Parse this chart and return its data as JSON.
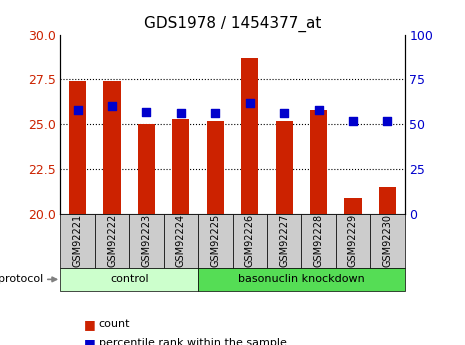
{
  "title": "GDS1978 / 1454377_at",
  "samples": [
    "GSM92221",
    "GSM92222",
    "GSM92223",
    "GSM92224",
    "GSM92225",
    "GSM92226",
    "GSM92227",
    "GSM92228",
    "GSM92229",
    "GSM92230"
  ],
  "count_values": [
    27.4,
    27.4,
    25.0,
    25.3,
    25.2,
    28.7,
    25.2,
    25.8,
    20.9,
    21.5
  ],
  "percentile_values": [
    58,
    60,
    57,
    56,
    56,
    62,
    56,
    58,
    52,
    52
  ],
  "ylim_left": [
    20,
    30
  ],
  "ylim_right": [
    0,
    100
  ],
  "yticks_left": [
    20,
    22.5,
    25,
    27.5,
    30
  ],
  "yticks_right": [
    0,
    25,
    50,
    75,
    100
  ],
  "bar_color": "#cc2200",
  "dot_color": "#0000cc",
  "groups": [
    {
      "label": "control",
      "indices": [
        0,
        1,
        2,
        3
      ],
      "color": "#ccffcc"
    },
    {
      "label": "basonuclin knockdown",
      "indices": [
        4,
        5,
        6,
        7,
        8,
        9
      ],
      "color": "#55dd55"
    }
  ],
  "protocol_label": "protocol",
  "legend": [
    {
      "label": "count",
      "color": "#cc2200"
    },
    {
      "label": "percentile rank within the sample",
      "color": "#0000cc"
    }
  ],
  "bar_width": 0.5,
  "dot_size": 40,
  "background_color": "#ffffff",
  "tick_label_color_left": "#cc2200",
  "tick_label_color_right": "#0000cc",
  "tickbox_color": "#cccccc",
  "title_fontsize": 11
}
